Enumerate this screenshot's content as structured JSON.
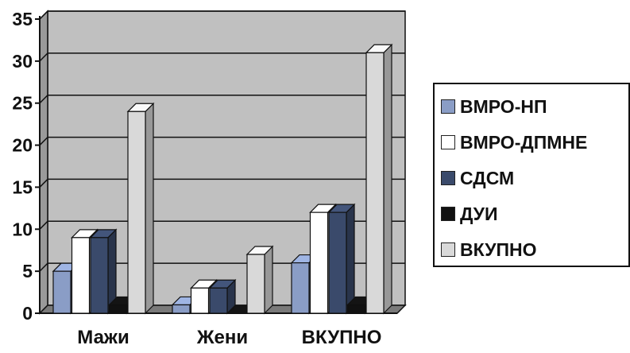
{
  "chart_data": {
    "type": "bar",
    "title": "",
    "xlabel": "",
    "ylabel": "",
    "ylim": [
      0,
      35
    ],
    "yticks": [
      0,
      5,
      10,
      15,
      20,
      25,
      30,
      35
    ],
    "grid": true,
    "legend_position": "right",
    "categories": [
      "Мажи",
      "Жени",
      "ВКУПНО"
    ],
    "series": [
      {
        "name": "ВМРО-НП",
        "values": [
          5,
          1,
          6
        ],
        "color": "#8a9dc6"
      },
      {
        "name": "ВМРО-ДПМНЕ",
        "values": [
          9,
          3,
          12
        ],
        "color": "#ffffff"
      },
      {
        "name": "СДСМ",
        "values": [
          9,
          3,
          12
        ],
        "color": "#3a4a6b"
      },
      {
        "name": "ДУИ",
        "values": [
          1,
          0,
          1
        ],
        "color": "#111111"
      },
      {
        "name": "ВКУПНО",
        "values": [
          24,
          7,
          31
        ],
        "color": "#d9d9d9"
      }
    ]
  },
  "tick_labels": [
    "0",
    "5",
    "10",
    "15",
    "20",
    "25",
    "30",
    "35"
  ]
}
